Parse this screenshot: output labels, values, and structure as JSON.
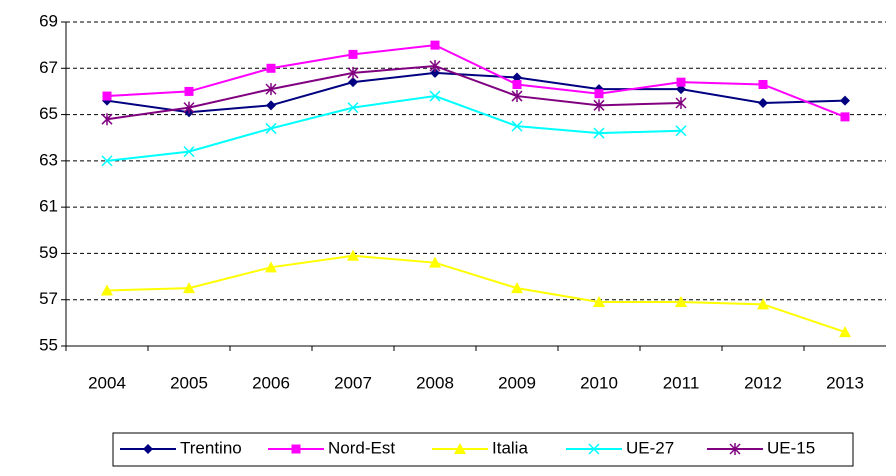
{
  "chart_data": {
    "type": "line",
    "categories": [
      "2004",
      "2005",
      "2006",
      "2007",
      "2008",
      "2009",
      "2010",
      "2011",
      "2012",
      "2013"
    ],
    "series": [
      {
        "name": "Trentino",
        "color": "#000080",
        "marker": "diamond",
        "values": [
          65.6,
          65.1,
          65.4,
          66.4,
          66.8,
          66.6,
          66.1,
          66.1,
          65.5,
          65.6
        ]
      },
      {
        "name": "Nord-Est",
        "color": "#ff00ff",
        "marker": "square",
        "values": [
          65.8,
          66.0,
          67.0,
          67.6,
          68.0,
          66.3,
          65.9,
          66.4,
          66.3,
          64.9
        ]
      },
      {
        "name": "Italia",
        "color": "#ffff00",
        "marker": "triangle",
        "values": [
          57.4,
          57.5,
          58.4,
          58.9,
          58.6,
          57.5,
          56.9,
          56.9,
          56.8,
          55.6
        ]
      },
      {
        "name": "UE-27",
        "color": "#00ffff",
        "marker": "x",
        "values": [
          63.0,
          63.4,
          64.4,
          65.3,
          65.8,
          64.5,
          64.2,
          64.3,
          null,
          null
        ]
      },
      {
        "name": "UE-15",
        "color": "#800080",
        "marker": "star",
        "values": [
          64.8,
          65.3,
          66.1,
          66.8,
          67.1,
          65.8,
          65.4,
          65.5,
          null,
          null
        ]
      }
    ],
    "ylim": [
      55,
      69
    ],
    "yticks": [
      55,
      57,
      59,
      61,
      63,
      65,
      67,
      69
    ],
    "grid": true,
    "legend": "bottom"
  }
}
